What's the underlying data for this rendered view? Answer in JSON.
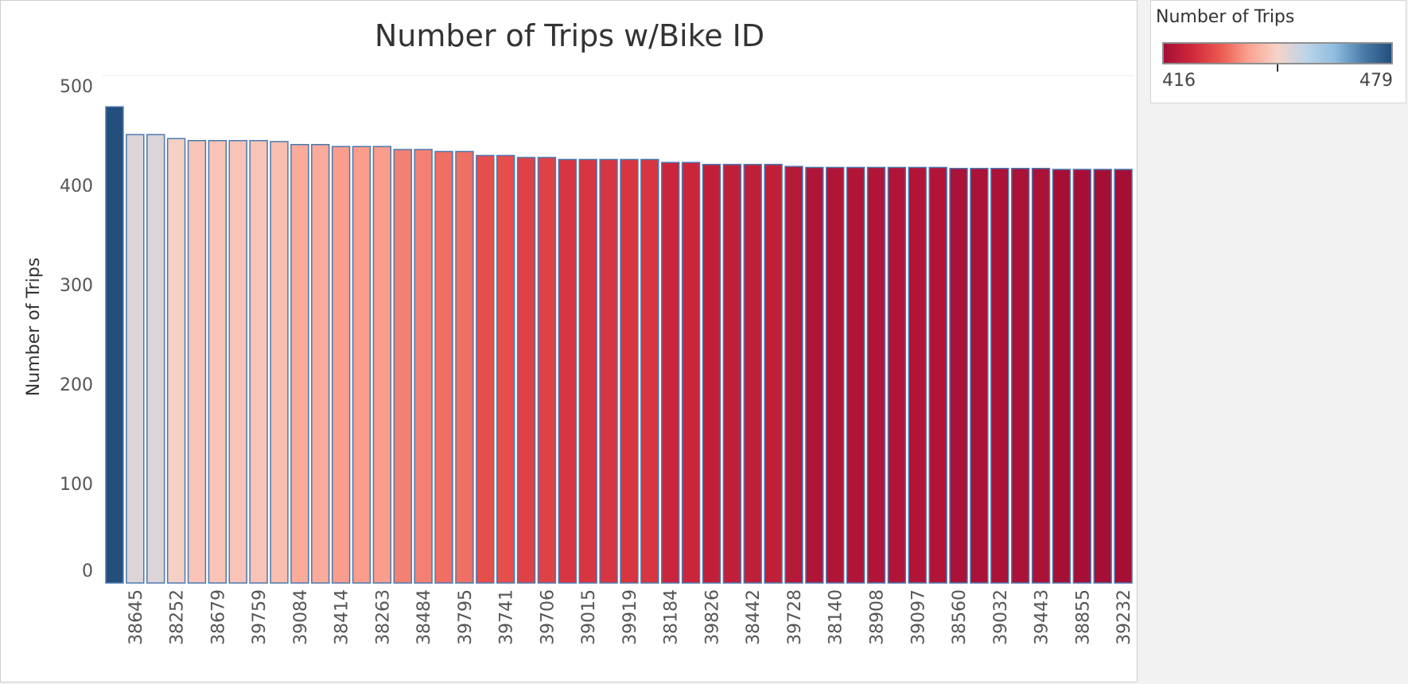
{
  "chart_data": {
    "type": "bar",
    "title": "Number of Trips w/Bike ID",
    "ylabel": "Number of Trips",
    "xlabel": "",
    "ylim": [
      0,
      500
    ],
    "yticks": [
      0,
      100,
      200,
      300,
      400,
      500
    ],
    "grid": false,
    "categories": [
      "",
      "38645",
      "",
      "38252",
      "",
      "38679",
      "",
      "39759",
      "",
      "39084",
      "",
      "38414",
      "",
      "38263",
      "",
      "38484",
      "",
      "39795",
      "",
      "39741",
      "",
      "39706",
      "",
      "39015",
      "",
      "39919",
      "",
      "38184",
      "",
      "39826",
      "",
      "38442",
      "",
      "39728",
      "",
      "38140",
      "",
      "38908",
      "",
      "39097",
      "",
      "38560",
      "",
      "39032",
      "",
      "39443",
      "",
      "38855",
      "",
      "39232"
    ],
    "values": [
      479,
      451,
      451,
      447,
      445,
      445,
      445,
      445,
      444,
      441,
      441,
      439,
      439,
      439,
      436,
      436,
      434,
      434,
      430,
      430,
      428,
      428,
      426,
      426,
      426,
      426,
      426,
      423,
      423,
      421,
      421,
      421,
      421,
      419,
      418,
      418,
      418,
      418,
      418,
      418,
      418,
      417,
      417,
      417,
      417,
      417,
      416,
      416,
      416,
      416
    ],
    "color_legend": {
      "title": "Number of Trips",
      "min_label": "416",
      "max_label": "479",
      "min": 416,
      "max": 479,
      "mid": 447.5,
      "colors": [
        "#a50f36",
        "#d0283c",
        "#ea5a50",
        "#fba391",
        "#f5d3c8",
        "#bcd5e8",
        "#8fbde0",
        "#4c7cab",
        "#244e7c"
      ]
    }
  }
}
